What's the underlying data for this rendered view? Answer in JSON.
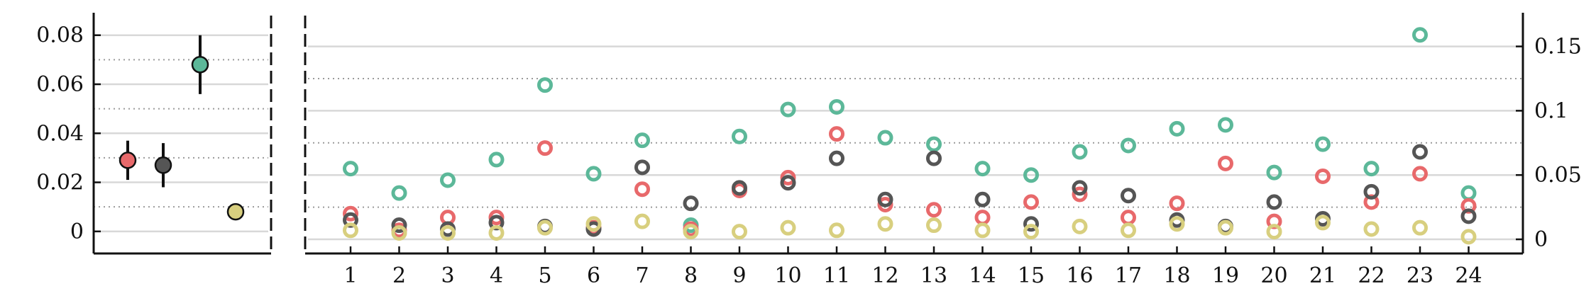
{
  "chart_data": [
    {
      "type": "scatter",
      "title": "",
      "xlabel": "",
      "ylabel": "",
      "ylim": [
        -0.009,
        0.088
      ],
      "yticks": [
        0,
        0.02,
        0.04,
        0.06,
        0.08
      ],
      "ytick_labels": [
        "0",
        "0.02",
        "0.04",
        "0.06",
        "0.08"
      ],
      "grid": "solid gridlines at labeled ticks, dotted gridlines between",
      "series": [
        {
          "color": "#e8696b",
          "value": 0.029,
          "err": [
            0.021,
            0.037
          ]
        },
        {
          "color": "#555555",
          "value": 0.027,
          "err": [
            0.018,
            0.036
          ]
        },
        {
          "color": "#5cb899",
          "value": 0.068,
          "err": [
            0.056,
            0.08
          ]
        },
        {
          "color": "#d8cf7f",
          "value": 0.008,
          "err": null
        }
      ]
    },
    {
      "type": "scatter",
      "title": "",
      "xlabel": "",
      "ylabel": "",
      "ylim": [
        -0.011,
        0.174
      ],
      "yticks": [
        0,
        0.05,
        0.1,
        0.15
      ],
      "ytick_labels": [
        "0",
        "0.05",
        "0.1",
        "0.15"
      ],
      "y_axis_side": "right",
      "grid": "solid gridlines at labeled ticks, dotted gridlines between",
      "marker": "hollow circle",
      "categories": [
        "1",
        "2",
        "3",
        "4",
        "5",
        "6",
        "7",
        "8",
        "9",
        "10",
        "11",
        "12",
        "13",
        "14",
        "15",
        "16",
        "17",
        "18",
        "19",
        "20",
        "21",
        "22",
        "23",
        "24"
      ],
      "series": [
        {
          "color": "#5cb899",
          "values": [
            0.055,
            0.036,
            0.046,
            0.062,
            0.12,
            0.051,
            0.077,
            0.011,
            0.08,
            0.101,
            0.103,
            0.079,
            0.074,
            0.055,
            0.05,
            0.068,
            0.073,
            0.086,
            0.089,
            0.052,
            0.074,
            0.055,
            0.159,
            0.036
          ]
        },
        {
          "color": "#e8696b",
          "values": [
            0.02,
            0.007,
            0.017,
            0.017,
            0.071,
            0.009,
            0.039,
            0.008,
            0.038,
            0.048,
            0.082,
            0.027,
            0.023,
            0.017,
            0.029,
            0.035,
            0.017,
            0.028,
            0.059,
            0.014,
            0.049,
            0.029,
            0.051,
            0.026
          ]
        },
        {
          "color": "#555555",
          "values": [
            0.015,
            0.011,
            0.008,
            0.013,
            0.01,
            0.008,
            0.056,
            0.028,
            0.04,
            0.044,
            0.063,
            0.031,
            0.063,
            0.031,
            0.012,
            0.04,
            0.034,
            0.015,
            0.01,
            0.029,
            0.016,
            0.037,
            0.068,
            0.018
          ]
        },
        {
          "color": "#d8cf7f",
          "values": [
            0.007,
            0.005,
            0.005,
            0.005,
            0.009,
            0.012,
            0.014,
            0.006,
            0.006,
            0.009,
            0.007,
            0.012,
            0.011,
            0.007,
            0.006,
            0.01,
            0.007,
            0.012,
            0.009,
            0.006,
            0.013,
            0.008,
            0.009,
            0.002
          ]
        }
      ]
    }
  ]
}
